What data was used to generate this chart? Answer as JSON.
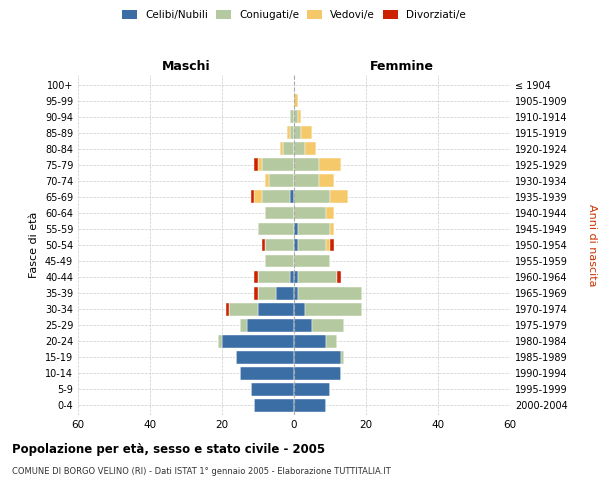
{
  "age_groups": [
    "0-4",
    "5-9",
    "10-14",
    "15-19",
    "20-24",
    "25-29",
    "30-34",
    "35-39",
    "40-44",
    "45-49",
    "50-54",
    "55-59",
    "60-64",
    "65-69",
    "70-74",
    "75-79",
    "80-84",
    "85-89",
    "90-94",
    "95-99",
    "100+"
  ],
  "birth_years": [
    "2000-2004",
    "1995-1999",
    "1990-1994",
    "1985-1989",
    "1980-1984",
    "1975-1979",
    "1970-1974",
    "1965-1969",
    "1960-1964",
    "1955-1959",
    "1950-1954",
    "1945-1949",
    "1940-1944",
    "1935-1939",
    "1930-1934",
    "1925-1929",
    "1920-1924",
    "1915-1919",
    "1910-1914",
    "1905-1909",
    "≤ 1904"
  ],
  "male": {
    "celibi": [
      11,
      12,
      15,
      16,
      20,
      13,
      10,
      5,
      1,
      0,
      0,
      0,
      0,
      1,
      0,
      0,
      0,
      0,
      0,
      0,
      0
    ],
    "coniugati": [
      0,
      0,
      0,
      0,
      1,
      2,
      8,
      5,
      9,
      8,
      8,
      10,
      8,
      8,
      7,
      9,
      3,
      1,
      1,
      0,
      0
    ],
    "vedovi": [
      0,
      0,
      0,
      0,
      0,
      0,
      0,
      0,
      0,
      0,
      0,
      0,
      0,
      2,
      1,
      1,
      1,
      1,
      0,
      0,
      0
    ],
    "divorziati": [
      0,
      0,
      0,
      0,
      0,
      0,
      1,
      1,
      1,
      0,
      1,
      0,
      0,
      1,
      0,
      1,
      0,
      0,
      0,
      0,
      0
    ]
  },
  "female": {
    "nubili": [
      9,
      10,
      13,
      13,
      9,
      5,
      3,
      1,
      1,
      0,
      1,
      1,
      0,
      0,
      0,
      0,
      0,
      0,
      0,
      0,
      0
    ],
    "coniugate": [
      0,
      0,
      0,
      1,
      3,
      9,
      16,
      18,
      11,
      10,
      8,
      9,
      9,
      10,
      7,
      7,
      3,
      2,
      1,
      0,
      0
    ],
    "vedove": [
      0,
      0,
      0,
      0,
      0,
      0,
      0,
      0,
      0,
      0,
      1,
      1,
      2,
      5,
      4,
      6,
      3,
      3,
      1,
      1,
      0
    ],
    "divorziate": [
      0,
      0,
      0,
      0,
      0,
      0,
      0,
      0,
      1,
      0,
      1,
      0,
      0,
      0,
      0,
      0,
      0,
      0,
      0,
      0,
      0
    ]
  },
  "colors": {
    "celibi": "#3a6ea5",
    "coniugati": "#b5c9a0",
    "vedovi": "#f5c96a",
    "divorziati": "#cc2200"
  },
  "xlim": 60,
  "title": "Popolazione per età, sesso e stato civile - 2005",
  "subtitle": "COMUNE DI BORGO VELINO (RI) - Dati ISTAT 1° gennaio 2005 - Elaborazione TUTTITALIA.IT",
  "ylabel_left": "Fasce di età",
  "ylabel_right": "Anni di nascita",
  "xlabel_left": "Maschi",
  "xlabel_right": "Femmine",
  "legend_labels": [
    "Celibi/Nubili",
    "Coniugati/e",
    "Vedovi/e",
    "Divorziati/e"
  ],
  "bg_color": "#ffffff",
  "grid_color": "#cccccc"
}
